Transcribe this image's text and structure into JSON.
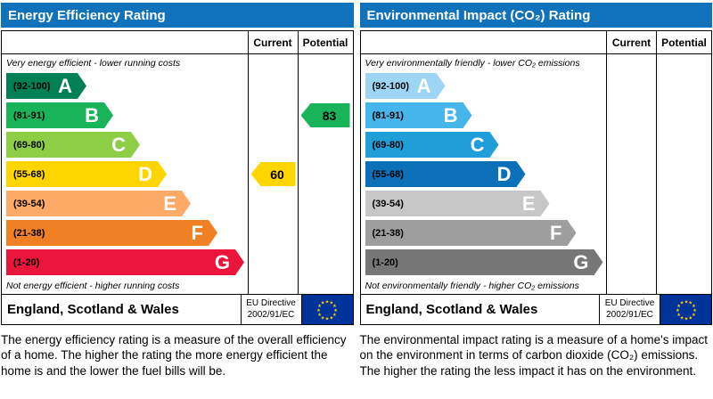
{
  "colors": {
    "header_bg": "#1072ba",
    "flag_bg": "#003399",
    "flag_stars": "#ffcc00"
  },
  "panels": [
    {
      "title": "Energy Efficiency Rating",
      "current_label": "Current",
      "potential_label": "Potential",
      "top_note": "Very energy efficient - lower running costs",
      "bottom_note": "Not energy efficient - higher running costs",
      "bands": [
        {
          "letter": "A",
          "range": "(92-100)",
          "color": "#008054"
        },
        {
          "letter": "B",
          "range": "(81-91)",
          "color": "#19b459"
        },
        {
          "letter": "C",
          "range": "(69-80)",
          "color": "#8dce46"
        },
        {
          "letter": "D",
          "range": "(55-68)",
          "color": "#ffd500"
        },
        {
          "letter": "E",
          "range": "(39-54)",
          "color": "#fcaa65"
        },
        {
          "letter": "F",
          "range": "(21-38)",
          "color": "#ef8023"
        },
        {
          "letter": "G",
          "range": "(1-20)",
          "color": "#e9153b"
        }
      ],
      "current": {
        "value": "60",
        "color": "#ffd500"
      },
      "potential": {
        "value": "83",
        "color": "#19b459"
      },
      "footer_region": "England, Scotland & Wales",
      "directive_line1": "EU Directive",
      "directive_line2": "2002/91/EC",
      "description": "The energy efficiency rating is a measure of the overall efficiency of a home. The higher the rating the more energy efficient the home is and the lower the fuel bills will be."
    },
    {
      "title": "Environmental Impact (CO₂) Rating",
      "current_label": "Current",
      "potential_label": "Potential",
      "top_note": "Very environmentally friendly - lower CO₂ emissions",
      "bottom_note": "Not environmentally friendly - higher CO₂ emissions",
      "bands": [
        {
          "letter": "A",
          "range": "(92-100)",
          "color": "#9cd6f4"
        },
        {
          "letter": "B",
          "range": "(81-91)",
          "color": "#46b5e9"
        },
        {
          "letter": "C",
          "range": "(69-80)",
          "color": "#1f9ed8"
        },
        {
          "letter": "D",
          "range": "(55-68)",
          "color": "#0c70b8"
        },
        {
          "letter": "E",
          "range": "(39-54)",
          "color": "#c7c7c7"
        },
        {
          "letter": "F",
          "range": "(21-38)",
          "color": "#9e9e9e"
        },
        {
          "letter": "G",
          "range": "(1-20)",
          "color": "#777777"
        }
      ],
      "footer_region": "England, Scotland & Wales",
      "directive_line1": "EU Directive",
      "directive_line2": "2002/91/EC",
      "description": "The environmental impact rating is a measure of a home's impact on the environment in terms of carbon dioxide (CO₂) emissions. The higher the rating the less impact it has on the environment."
    }
  ],
  "chart_data": [
    {
      "type": "bar",
      "title": "Energy Efficiency Rating",
      "categories": [
        "A (92-100)",
        "B (81-91)",
        "C (69-80)",
        "D (55-68)",
        "E (39-54)",
        "F (21-38)",
        "G (1-20)"
      ],
      "series": [
        {
          "name": "Current",
          "value": 60,
          "band": "D"
        },
        {
          "name": "Potential",
          "value": 83,
          "band": "B"
        }
      ],
      "scale": [
        1,
        100
      ],
      "annotations": [
        "Very energy efficient - lower running costs",
        "Not energy efficient - higher running costs"
      ],
      "footer": "England, Scotland & Wales — EU Directive 2002/91/EC"
    },
    {
      "type": "bar",
      "title": "Environmental Impact (CO₂) Rating",
      "categories": [
        "A (92-100)",
        "B (81-91)",
        "C (69-80)",
        "D (55-68)",
        "E (39-54)",
        "F (21-38)",
        "G (1-20)"
      ],
      "series": [
        {
          "name": "Current",
          "value": null
        },
        {
          "name": "Potential",
          "value": null
        }
      ],
      "scale": [
        1,
        100
      ],
      "annotations": [
        "Very environmentally friendly - lower CO₂ emissions",
        "Not environmentally friendly - higher CO₂ emissions"
      ],
      "footer": "England, Scotland & Wales — EU Directive 2002/91/EC"
    }
  ]
}
